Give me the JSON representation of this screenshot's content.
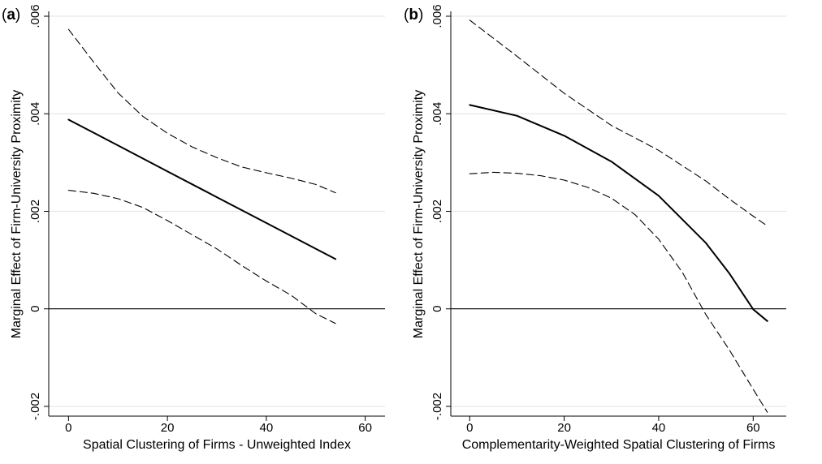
{
  "chart_data": [
    {
      "type": "line",
      "panel_label": "(a)",
      "panel_letter": "a",
      "xlabel": "Spatial Clustering of Firms - Unweighted Index",
      "ylabel": "Marginal Effect of Firm-University Proximity",
      "xlim": [
        -4,
        64
      ],
      "ylim": [
        -0.0022,
        0.0061
      ],
      "x_ticks": [
        0,
        20,
        40,
        60
      ],
      "x_tick_labels": [
        "0",
        "20",
        "40",
        "60"
      ],
      "y_ticks": [
        -0.002,
        0,
        0.002,
        0.004,
        0.006
      ],
      "y_tick_labels": [
        "-.002",
        "0",
        ".002",
        ".004",
        ".006"
      ],
      "grid": "horizontal",
      "reference_line_y": 0,
      "series": [
        {
          "style": "solid",
          "x": [
            0,
            10,
            20,
            30,
            40,
            54
          ],
          "y": [
            0.00388,
            0.00335,
            0.00282,
            0.00229,
            0.00176,
            0.00102
          ]
        },
        {
          "style": "dashed",
          "x": [
            0,
            5,
            10,
            15,
            20,
            25,
            30,
            35,
            40,
            45,
            50,
            54
          ],
          "y": [
            0.00573,
            0.00507,
            0.00443,
            0.00395,
            0.0036,
            0.00332,
            0.0031,
            0.00291,
            0.00279,
            0.00268,
            0.00255,
            0.00238
          ]
        },
        {
          "style": "dashed",
          "x": [
            0,
            5,
            10,
            15,
            20,
            25,
            30,
            35,
            40,
            45,
            50,
            54
          ],
          "y": [
            0.00243,
            0.00237,
            0.00226,
            0.00208,
            0.00181,
            0.00152,
            0.00123,
            0.00089,
            0.00057,
            0.00028,
            -0.0001,
            -0.0003
          ]
        }
      ]
    },
    {
      "type": "line",
      "panel_label": "(b)",
      "panel_letter": "b",
      "xlabel": "Complementarity-Weighted Spatial Clustering of Firms",
      "ylabel": "Marginal Effect of Firm-University Proximity",
      "xlim": [
        -4,
        67
      ],
      "ylim": [
        -0.0022,
        0.0061
      ],
      "x_ticks": [
        0,
        20,
        40,
        60
      ],
      "x_tick_labels": [
        "0",
        "20",
        "40",
        "60"
      ],
      "y_ticks": [
        -0.002,
        0,
        0.002,
        0.004,
        0.006
      ],
      "y_tick_labels": [
        "-.002",
        "0",
        ".002",
        ".004",
        ".006"
      ],
      "grid": "horizontal",
      "reference_line_y": 0,
      "series": [
        {
          "style": "solid",
          "x": [
            0,
            10,
            20,
            30,
            40,
            50,
            55,
            60,
            63
          ],
          "y": [
            0.00418,
            0.00396,
            0.00355,
            0.00302,
            0.00232,
            0.00135,
            0.00072,
            -1e-05,
            -0.00025
          ]
        },
        {
          "style": "dashed",
          "x": [
            0,
            10,
            20,
            30,
            40,
            50,
            55,
            60,
            63
          ],
          "y": [
            0.00592,
            0.00518,
            0.00442,
            0.00376,
            0.00325,
            0.00262,
            0.00225,
            0.0019,
            0.0017
          ]
        },
        {
          "style": "dashed",
          "x": [
            0,
            5,
            10,
            15,
            20,
            25,
            30,
            35,
            40,
            45,
            50,
            55,
            60,
            63
          ],
          "y": [
            0.00277,
            0.0028,
            0.00278,
            0.00273,
            0.00264,
            0.00249,
            0.00227,
            0.00193,
            0.00143,
            0.00075,
            -0.00012,
            -0.00085,
            -0.00165,
            -0.00212
          ]
        }
      ]
    }
  ]
}
